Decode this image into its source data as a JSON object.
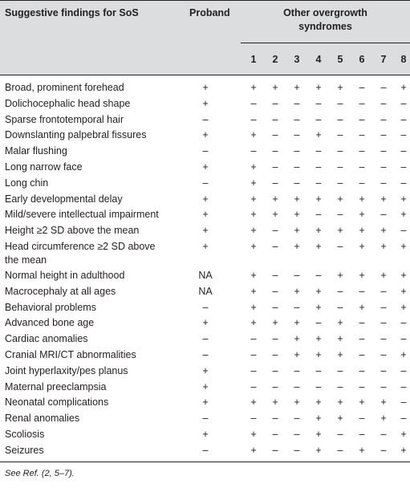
{
  "header": {
    "col_findings": "Suggestive findings for SoS",
    "col_proband": "Proband",
    "col_other_line1": "Other overgrowth",
    "col_other_line2": "syndromes",
    "syndrome_numbers": [
      "1",
      "2",
      "3",
      "4",
      "5",
      "6",
      "7",
      "8"
    ]
  },
  "rows": [
    {
      "label": "Broad, prominent forehead",
      "proband": "+",
      "vals": [
        "+",
        "+",
        "+",
        "+",
        "+",
        "–",
        "–",
        "+"
      ]
    },
    {
      "label": "Dolichocephalic head shape",
      "proband": "+",
      "vals": [
        "–",
        "–",
        "–",
        "–",
        "–",
        "–",
        "–",
        "–"
      ]
    },
    {
      "label": "Sparse frontotemporal hair",
      "proband": "–",
      "vals": [
        "–",
        "–",
        "–",
        "–",
        "–",
        "–",
        "–",
        "–"
      ]
    },
    {
      "label": "Downslanting palpebral fissures",
      "proband": "+",
      "vals": [
        "+",
        "–",
        "–",
        "+",
        "–",
        "–",
        "–",
        "–"
      ]
    },
    {
      "label": "Malar flushing",
      "proband": "–",
      "vals": [
        "–",
        "–",
        "–",
        "–",
        "–",
        "–",
        "–",
        "–"
      ]
    },
    {
      "label": "Long narrow face",
      "proband": "+",
      "vals": [
        "+",
        "–",
        "–",
        "–",
        "–",
        "–",
        "–",
        "–"
      ]
    },
    {
      "label": "Long chin",
      "proband": "–",
      "vals": [
        "+",
        "–",
        "–",
        "–",
        "–",
        "–",
        "–",
        "–"
      ]
    },
    {
      "label": "Early developmental delay",
      "proband": "+",
      "vals": [
        "+",
        "+",
        "+",
        "+",
        "+",
        "+",
        "+",
        "+"
      ]
    },
    {
      "label": "Mild/severe intellectual impairment",
      "proband": "+",
      "vals": [
        "+",
        "+",
        "+",
        "–",
        "–",
        "+",
        "–",
        "+"
      ]
    },
    {
      "label": "Height ≥2 SD above the mean",
      "proband": "+",
      "vals": [
        "+",
        "–",
        "+",
        "+",
        "+",
        "+",
        "+",
        "–"
      ]
    },
    {
      "label": "Head circumference ≥2 SD above the mean",
      "proband": "+",
      "vals": [
        "+",
        "–",
        "+",
        "+",
        "–",
        "+",
        "+",
        "+"
      ]
    },
    {
      "label": "Normal height in adulthood",
      "proband": "NA",
      "vals": [
        "+",
        "–",
        "–",
        "–",
        "+",
        "+",
        "+",
        "+"
      ]
    },
    {
      "label": "Macrocephaly at all ages",
      "proband": "NA",
      "vals": [
        "+",
        "–",
        "+",
        "+",
        "–",
        "–",
        "–",
        "+"
      ]
    },
    {
      "label": "Behavioral problems",
      "proband": "–",
      "vals": [
        "+",
        "–",
        "–",
        "+",
        "–",
        "+",
        "–",
        "+"
      ]
    },
    {
      "label": "Advanced bone age",
      "proband": "+",
      "vals": [
        "+",
        "+",
        "+",
        "–",
        "+",
        "–",
        "–",
        "–"
      ]
    },
    {
      "label": "Cardiac anomalies",
      "proband": "–",
      "vals": [
        "–",
        "–",
        "+",
        "+",
        "+",
        "–",
        "–",
        "–"
      ]
    },
    {
      "label": "Cranial MRI/CT abnormalities",
      "proband": "–",
      "vals": [
        "–",
        "–",
        "+",
        "+",
        "+",
        "–",
        "–",
        "+"
      ]
    },
    {
      "label": "Joint hyperlaxity/pes planus",
      "proband": "+",
      "vals": [
        "–",
        "–",
        "–",
        "–",
        "–",
        "–",
        "–",
        "–"
      ]
    },
    {
      "label": "Maternal preeclampsia",
      "proband": "+",
      "vals": [
        "–",
        "–",
        "–",
        "–",
        "–",
        "–",
        "–",
        "–"
      ]
    },
    {
      "label": "Neonatal complications",
      "proband": "+",
      "vals": [
        "+",
        "+",
        "+",
        "+",
        "+",
        "+",
        "+",
        "–"
      ]
    },
    {
      "label": "Renal anomalies",
      "proband": "–",
      "vals": [
        "–",
        "–",
        "–",
        "+",
        "+",
        "–",
        "+",
        "–"
      ]
    },
    {
      "label": "Scoliosis",
      "proband": "+",
      "vals": [
        "+",
        "–",
        "–",
        "+",
        "–",
        "–",
        "–",
        "+"
      ]
    },
    {
      "label": "Seizures",
      "proband": "–",
      "vals": [
        "+",
        "–",
        "–",
        "+",
        "–",
        "+",
        "–",
        "+"
      ]
    }
  ],
  "footnote": "See Ref. (2, 5–7)."
}
